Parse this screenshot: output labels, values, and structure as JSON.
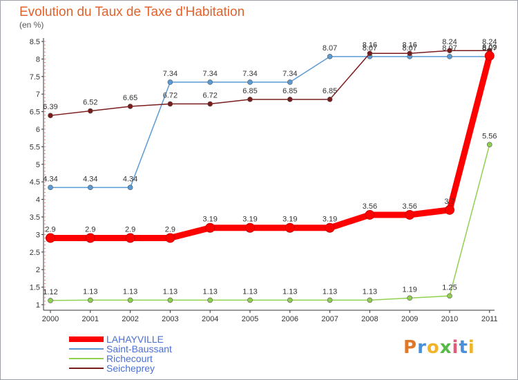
{
  "chart_data": {
    "type": "line",
    "title": "Evolution du Taux de Taxe d'Habitation",
    "ylabel": "(en %)",
    "x": [
      "2000",
      "2001",
      "2002",
      "2003",
      "2004",
      "2005",
      "2006",
      "2007",
      "2008",
      "2009",
      "2010",
      "2011"
    ],
    "y_ticks": [
      "1",
      "1.5",
      "2",
      "2.5",
      "3",
      "3.5",
      "4",
      "4.5",
      "5",
      "5.5",
      "6",
      "6.5",
      "7",
      "7.5",
      "8",
      "8.5"
    ],
    "ylim": [
      1,
      8.5
    ],
    "grid": false,
    "legend_position": "bottom-left",
    "series": [
      {
        "name": "Saint-Baussant",
        "color": "#5b9bd5",
        "values": [
          4.34,
          4.34,
          4.34,
          7.34,
          7.34,
          7.34,
          7.34,
          8.07,
          8.07,
          8.07,
          8.07,
          8.07
        ],
        "labels": [
          "4.34",
          "4.34",
          "4.34",
          "7.34",
          "7.34",
          "7.34",
          "7.34",
          "8.07",
          "8.07",
          "8.07",
          "8.07",
          "8.07"
        ]
      },
      {
        "name": "Seicheprey",
        "color": "#7b1c1c",
        "values": [
          6.39,
          6.52,
          6.65,
          6.72,
          6.72,
          6.85,
          6.85,
          6.85,
          8.16,
          8.16,
          8.24,
          8.24
        ],
        "labels": [
          "6.39",
          "6.52",
          "6.65",
          "6.72",
          "6.72",
          "6.85",
          "6.85",
          "6.85",
          "8.16",
          "8.16",
          "8.24",
          "8.24"
        ]
      },
      {
        "name": "Richecourt",
        "color": "#8fd14f",
        "values": [
          1.12,
          1.13,
          1.13,
          1.13,
          1.13,
          1.13,
          1.13,
          1.13,
          1.13,
          1.19,
          1.25,
          5.56
        ],
        "labels": [
          "1.12",
          "1.13",
          "1.13",
          "1.13",
          "1.13",
          "1.13",
          "1.13",
          "1.13",
          "1.13",
          "1.19",
          "1.25",
          "5.56"
        ]
      },
      {
        "name": "LAHAYVILLE",
        "color": "#ff0000",
        "values": [
          2.9,
          2.9,
          2.9,
          2.9,
          3.19,
          3.19,
          3.19,
          3.19,
          3.56,
          3.56,
          3.7,
          8.09
        ],
        "labels": [
          "2.9",
          "2.9",
          "2.9",
          "2.9",
          "3.19",
          "3.19",
          "3.19",
          "3.19",
          "3.56",
          "3.56",
          "3.7",
          "8.09"
        ]
      }
    ]
  },
  "legend": {
    "items": [
      {
        "label": "LAHAYVILLE",
        "color": "#ff0000",
        "thickness": 8
      },
      {
        "label": "Saint-Baussant",
        "color": "#5b9bd5",
        "thickness": 2
      },
      {
        "label": "Richecourt",
        "color": "#8fd14f",
        "thickness": 2
      },
      {
        "label": "Seicheprey",
        "color": "#7b1c1c",
        "thickness": 2
      }
    ]
  },
  "logo": {
    "letters": [
      "P",
      "r",
      "o",
      "x",
      "i",
      "t",
      "i"
    ]
  }
}
